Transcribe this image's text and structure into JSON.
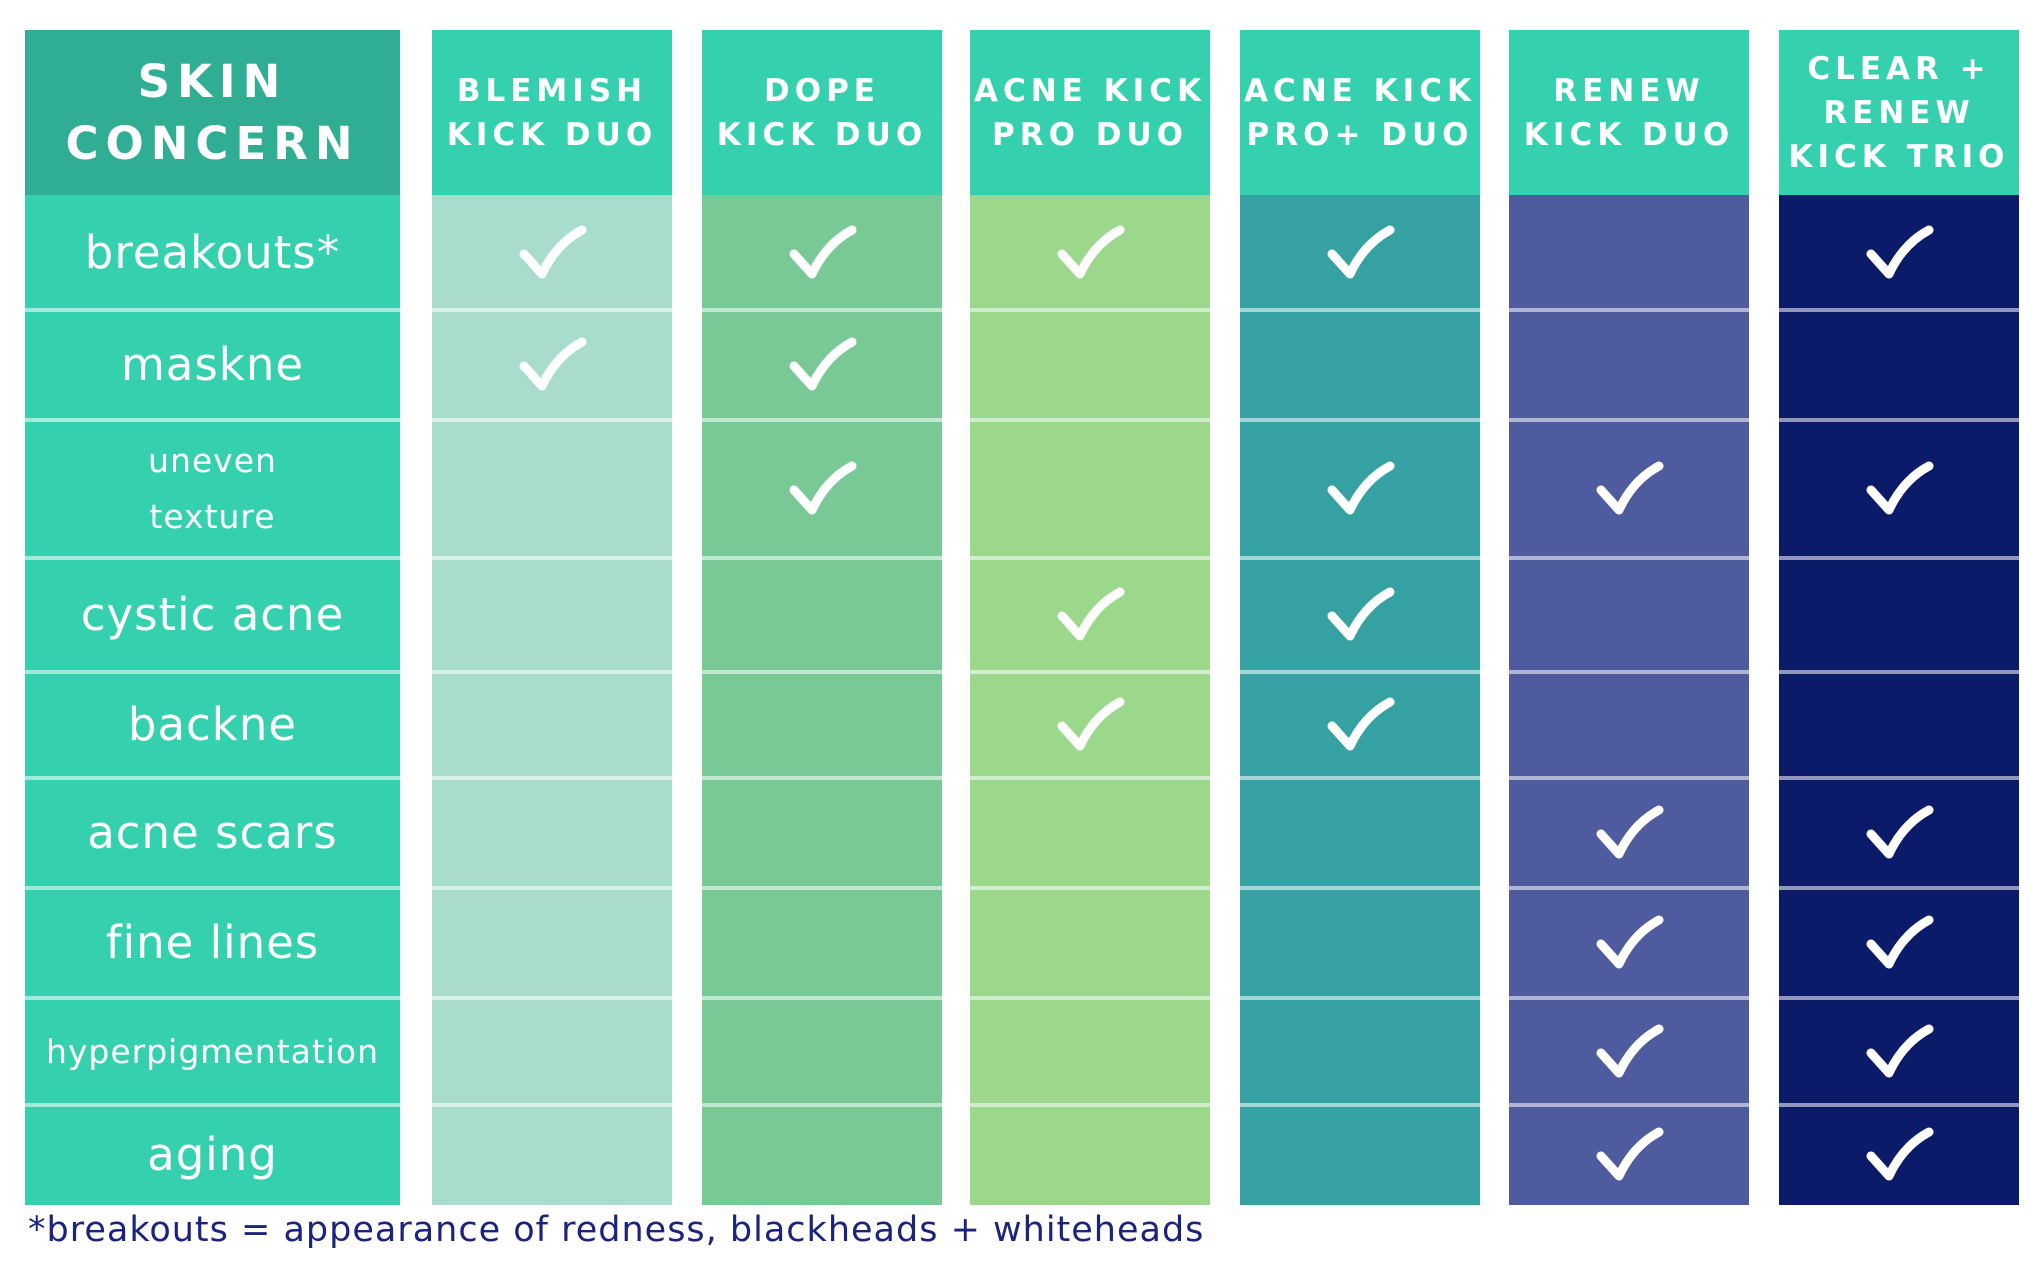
{
  "header": {
    "concern_label": "SKIN\nCONCERN"
  },
  "colors": {
    "concern_header": "#2fae93",
    "concern_body": "#35d1ae",
    "product_header": "#35d1ae"
  },
  "products": [
    {
      "name": "BLEMISH\nKICK DUO",
      "body_color": "#a8ddcd"
    },
    {
      "name": "DOPE\nKICK DUO",
      "body_color": "#79c996"
    },
    {
      "name": "ACNE KICK\nPRO DUO",
      "body_color": "#9bd88c"
    },
    {
      "name": "ACNE KICK\nPRO+ DUO",
      "body_color": "#35a1a2"
    },
    {
      "name": "RENEW\nKICK DUO",
      "body_color": "#4e5b9e"
    },
    {
      "name": "CLEAR +\nRENEW\nKICK TRIO",
      "body_color": "#0b1a69"
    }
  ],
  "concerns": [
    {
      "label": "breakouts*",
      "checks": [
        true,
        true,
        true,
        true,
        false,
        true
      ]
    },
    {
      "label": "maskne",
      "checks": [
        true,
        true,
        false,
        false,
        false,
        false
      ]
    },
    {
      "label": "uneven\n texture",
      "checks": [
        false,
        true,
        false,
        true,
        true,
        true
      ]
    },
    {
      "label": "cystic acne",
      "checks": [
        false,
        false,
        true,
        true,
        false,
        false
      ]
    },
    {
      "label": "backne",
      "checks": [
        false,
        false,
        true,
        true,
        false,
        false
      ]
    },
    {
      "label": "acne scars",
      "checks": [
        false,
        false,
        false,
        false,
        true,
        true
      ]
    },
    {
      "label": "fine lines",
      "checks": [
        false,
        false,
        false,
        false,
        true,
        true
      ]
    },
    {
      "label": "hyperpigmentation",
      "checks": [
        false,
        false,
        false,
        false,
        true,
        true
      ]
    },
    {
      "label": "aging",
      "checks": [
        false,
        false,
        false,
        false,
        true,
        true
      ]
    }
  ],
  "footnote": "*breakouts = appearance of redness, blackheads + whiteheads"
}
